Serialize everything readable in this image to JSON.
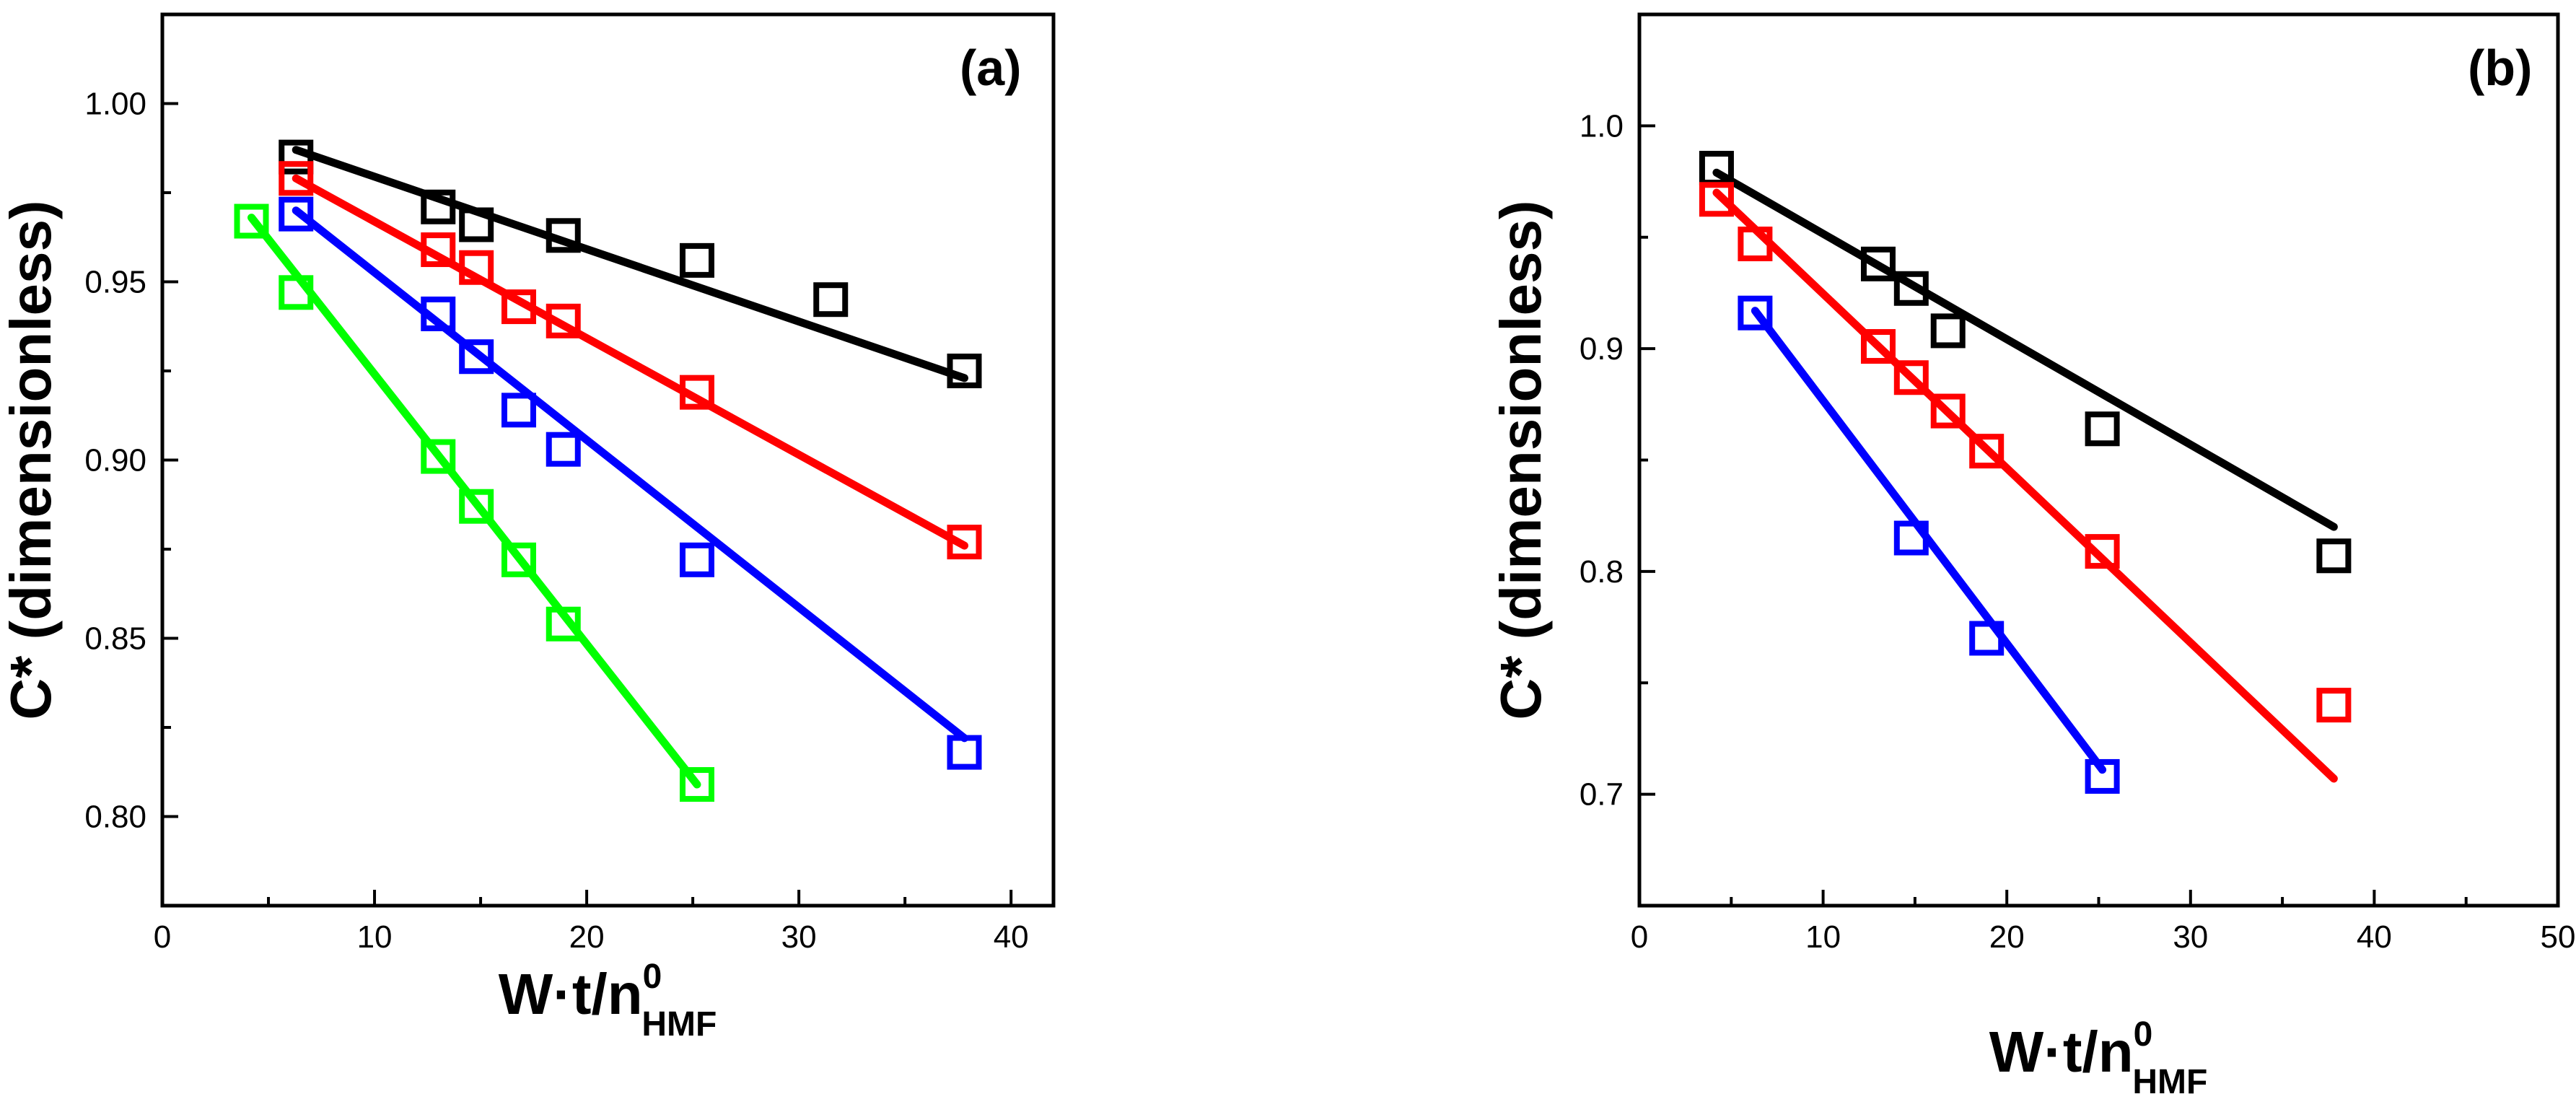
{
  "chart_data": [
    {
      "type": "scatter",
      "panel_label": "(a)",
      "xlabel_main": "W·t/n",
      "xlabel_sup": "0",
      "xlabel_sub": "HMF",
      "ylabel": "C* (dimensionless)",
      "xlim": [
        0,
        42
      ],
      "ylim": [
        0.775,
        1.025
      ],
      "xticks": [
        0,
        10,
        20,
        30,
        40
      ],
      "xtick_labels": [
        "0",
        "10",
        "20",
        "30",
        "40"
      ],
      "yticks": [
        0.8,
        0.85,
        0.9,
        0.95,
        1.0
      ],
      "ytick_labels": [
        "0.80",
        "0.85",
        "0.90",
        "0.95",
        "1.00"
      ],
      "series": [
        {
          "name": "black",
          "color": "#000000",
          "points": [
            [
              6.3,
              0.985
            ],
            [
              13.0,
              0.971
            ],
            [
              14.8,
              0.966
            ],
            [
              18.9,
              0.963
            ],
            [
              25.2,
              0.956
            ],
            [
              31.5,
              0.945
            ],
            [
              37.8,
              0.925
            ]
          ],
          "fit": [
            [
              6.3,
              0.987
            ],
            [
              37.8,
              0.923
            ]
          ]
        },
        {
          "name": "red",
          "color": "#ff0000",
          "points": [
            [
              6.3,
              0.979
            ],
            [
              13.0,
              0.959
            ],
            [
              14.8,
              0.954
            ],
            [
              16.8,
              0.943
            ],
            [
              18.9,
              0.939
            ],
            [
              25.2,
              0.919
            ],
            [
              37.8,
              0.877
            ]
          ],
          "fit": [
            [
              6.3,
              0.979
            ],
            [
              37.8,
              0.876
            ]
          ]
        },
        {
          "name": "blue",
          "color": "#0000ff",
          "points": [
            [
              6.3,
              0.969
            ],
            [
              13.0,
              0.941
            ],
            [
              14.8,
              0.929
            ],
            [
              16.8,
              0.914
            ],
            [
              18.9,
              0.903
            ],
            [
              25.2,
              0.872
            ],
            [
              37.8,
              0.818
            ]
          ],
          "fit": [
            [
              6.3,
              0.97
            ],
            [
              37.8,
              0.822
            ]
          ]
        },
        {
          "name": "green",
          "color": "#00ff00",
          "points": [
            [
              4.2,
              0.967
            ],
            [
              6.3,
              0.947
            ],
            [
              13.0,
              0.901
            ],
            [
              14.8,
              0.887
            ],
            [
              16.8,
              0.872
            ],
            [
              18.9,
              0.854
            ],
            [
              25.2,
              0.809
            ]
          ],
          "fit": [
            [
              4.2,
              0.968
            ],
            [
              25.2,
              0.809
            ]
          ]
        }
      ]
    },
    {
      "type": "scatter",
      "panel_label": "(b)",
      "xlabel_main": "W·t/n",
      "xlabel_sup": "0",
      "xlabel_sub": "HMF",
      "ylabel": "C* (dimensionless)",
      "xlim": [
        0,
        50
      ],
      "ylim": [
        0.65,
        1.05
      ],
      "xticks": [
        0,
        10,
        20,
        30,
        40,
        50
      ],
      "xtick_labels": [
        "0",
        "10",
        "20",
        "30",
        "40",
        "50"
      ],
      "yticks": [
        0.7,
        0.8,
        0.9,
        1.0
      ],
      "ytick_labels": [
        "0.7",
        "0.8",
        "0.9",
        "1.0"
      ],
      "series": [
        {
          "name": "black",
          "color": "#000000",
          "points": [
            [
              4.2,
              0.981
            ],
            [
              13.0,
              0.938
            ],
            [
              14.8,
              0.927
            ],
            [
              16.8,
              0.908
            ],
            [
              25.2,
              0.864
            ],
            [
              37.8,
              0.807
            ]
          ],
          "fit": [
            [
              4.2,
              0.979
            ],
            [
              37.8,
              0.82
            ]
          ]
        },
        {
          "name": "red",
          "color": "#ff0000",
          "points": [
            [
              4.2,
              0.967
            ],
            [
              6.3,
              0.947
            ],
            [
              13.0,
              0.901
            ],
            [
              14.8,
              0.887
            ],
            [
              16.8,
              0.872
            ],
            [
              18.9,
              0.854
            ],
            [
              25.2,
              0.809
            ],
            [
              37.8,
              0.74
            ]
          ],
          "fit": [
            [
              4.2,
              0.97
            ],
            [
              37.8,
              0.707
            ]
          ]
        },
        {
          "name": "blue",
          "color": "#0000ff",
          "points": [
            [
              6.3,
              0.916
            ],
            [
              14.8,
              0.815
            ],
            [
              18.9,
              0.77
            ],
            [
              25.2,
              0.708
            ]
          ],
          "fit": [
            [
              6.3,
              0.917
            ],
            [
              25.2,
              0.711
            ]
          ]
        }
      ]
    }
  ]
}
